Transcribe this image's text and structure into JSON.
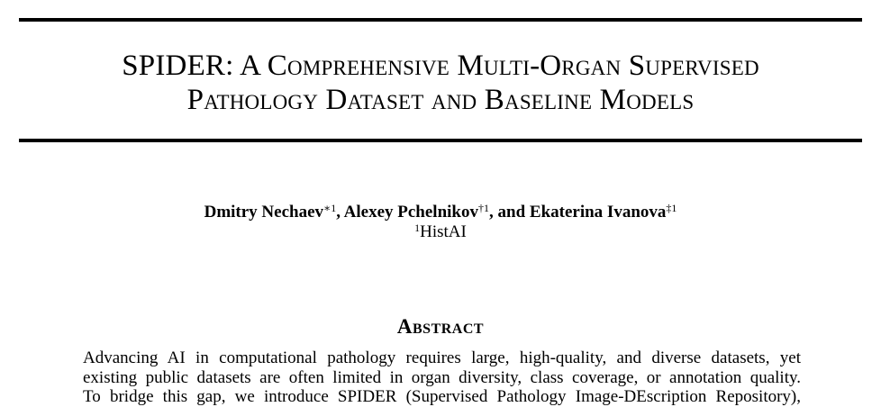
{
  "paper": {
    "title_line1": "SPIDER: A Comprehensive Multi-Organ Supervised",
    "title_line2": "Pathology Dataset and Baseline Models",
    "authors": [
      {
        "name": "Dmitry Nechaev",
        "marks": "∗1"
      },
      {
        "name": "Alexey Pchelnikov",
        "marks": "†1"
      },
      {
        "name": "Ekaterina Ivanova",
        "marks": "‡1"
      }
    ],
    "author_sep_1": ", ",
    "author_sep_2": ", and ",
    "affiliation": {
      "mark": "1",
      "name": "HistAI"
    },
    "abstract_heading": "Abstract",
    "abstract_lines": [
      "Advancing AI in computational pathology requires large, high-quality, and diverse datasets, yet",
      "existing public datasets are often limited in organ diversity, class coverage, or annotation quality.",
      "To bridge this gap, we introduce SPIDER (Supervised Pathology Image-DEscription Repository),"
    ]
  }
}
